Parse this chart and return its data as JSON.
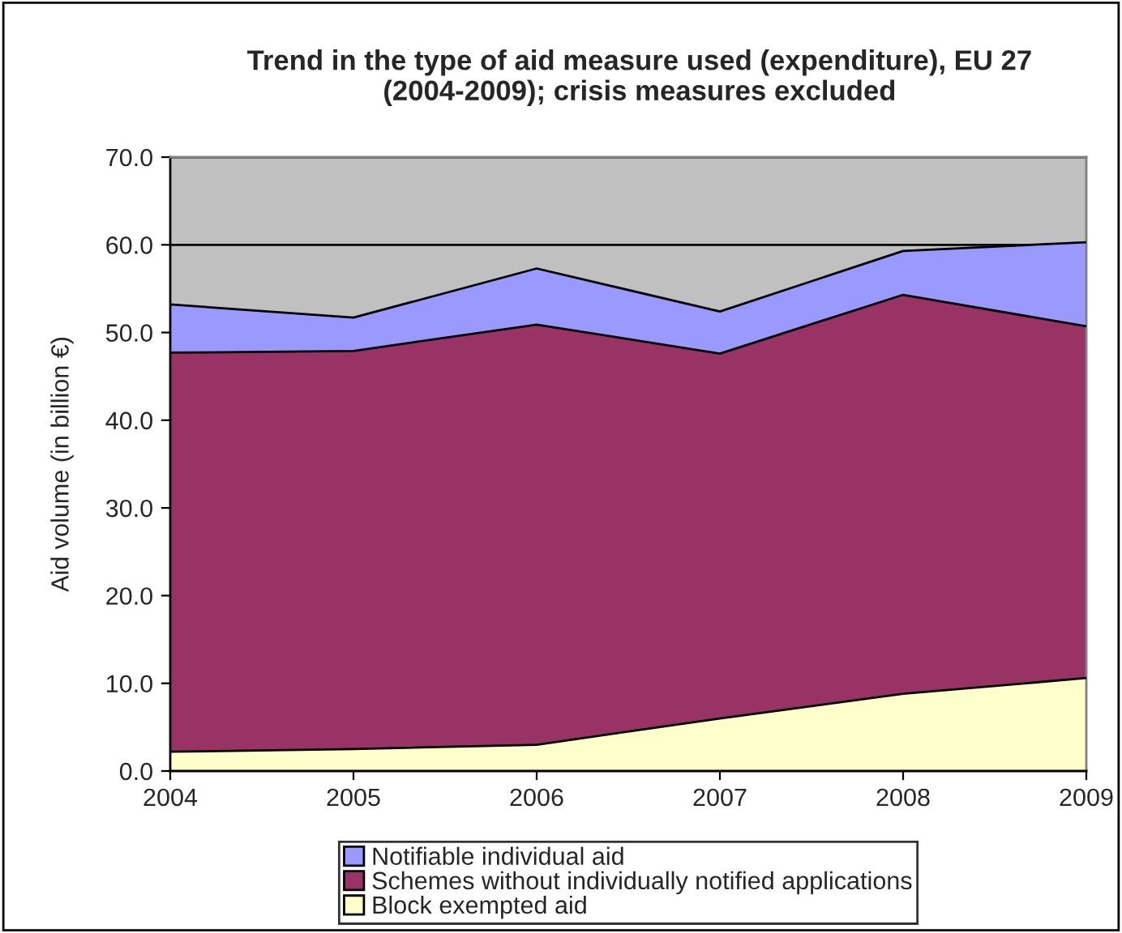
{
  "chart_data": {
    "type": "area",
    "stacked": true,
    "title": "Trend in the type of aid measure used (expenditure), EU 27\n(2004-2009); crisis measures excluded",
    "ylabel": "Aid volume (in billion €)",
    "categories": [
      "2004",
      "2005",
      "2006",
      "2007",
      "2008",
      "2009"
    ],
    "series": [
      {
        "name": "Block exempted aid",
        "color": "#ffffcc",
        "values": [
          2.2,
          2.5,
          3.0,
          6.0,
          8.8,
          10.6
        ]
      },
      {
        "name": "Schemes without individually notified applications",
        "color": "#993366",
        "values": [
          45.5,
          45.4,
          47.9,
          41.6,
          45.5,
          40.1
        ]
      },
      {
        "name": "Notifiable individual aid",
        "color": "#9999ff",
        "values": [
          5.5,
          3.8,
          6.4,
          4.8,
          5.0,
          9.6
        ]
      }
    ],
    "ylim": [
      0,
      70
    ],
    "yticks": [
      {
        "value": 0,
        "label": "0.0"
      },
      {
        "value": 10,
        "label": "10.0"
      },
      {
        "value": 20,
        "label": "20.0"
      },
      {
        "value": 30,
        "label": "30.0"
      },
      {
        "value": 40,
        "label": "40.0"
      },
      {
        "value": 50,
        "label": "50.0"
      },
      {
        "value": 60,
        "label": "60.0"
      },
      {
        "value": 70,
        "label": "70.0"
      }
    ],
    "grid": "y",
    "legend": "bottom"
  }
}
